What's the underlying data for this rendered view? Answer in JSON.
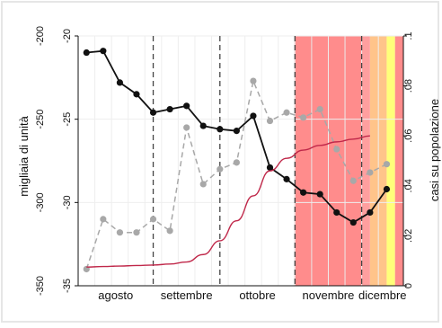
{
  "chart_data": {
    "type": "line",
    "ylabel_left": "migliaia di unità",
    "ylabel_right": "casi su popolazione",
    "y_left": {
      "min": -35,
      "max": -20,
      "ticks": [
        -20,
        -25,
        -30,
        -35
      ],
      "tick_labels_outer": [
        "-200",
        "-250",
        "-300",
        "-350"
      ],
      "tick_labels_inner": [
        "-20",
        "-25",
        "-30",
        "-35"
      ]
    },
    "y_right": {
      "min": 0,
      "max": 0.1,
      "ticks": [
        0,
        0.02,
        0.04,
        0.06,
        0.08,
        0.1
      ],
      "tick_labels": [
        "0",
        ".02",
        ".04",
        ".06",
        ".08",
        ".1"
      ]
    },
    "months": [
      {
        "label": "agosto",
        "start": 0,
        "end": 4.5
      },
      {
        "label": "settembre",
        "start": 4.5,
        "end": 8.5
      },
      {
        "label": "ottobre",
        "start": 8.5,
        "end": 13.0
      },
      {
        "label": "novembre",
        "start": 13.0,
        "end": 17.0
      },
      {
        "label": "dicembre",
        "start": 17.0,
        "end": 19.5
      }
    ],
    "weeks": 19,
    "series": [
      {
        "axis": "left",
        "style": "solid-black",
        "values": [
          -21.0,
          -20.9,
          -22.8,
          -23.5,
          -24.6,
          -24.4,
          -24.2,
          -25.4,
          -25.6,
          -25.7,
          -24.8,
          -27.9,
          -28.6,
          -29.4,
          -29.5,
          -30.6,
          -31.2,
          -30.6,
          -29.2
        ]
      },
      {
        "axis": "left",
        "style": "dashed-gray",
        "values": [
          -34.0,
          -31.0,
          -31.8,
          -31.8,
          -31.0,
          -31.7,
          -25.5,
          -28.9,
          -28.0,
          -27.6,
          -22.7,
          -25.1,
          -24.6,
          -24.9,
          -24.4,
          -26.8,
          -28.7,
          -28.2,
          -27.7
        ]
      },
      {
        "axis": "right",
        "style": "smooth-crimson",
        "values": [
          0.0075,
          0.0077,
          0.0079,
          0.0081,
          0.0083,
          0.0087,
          0.0095,
          0.0125,
          0.018,
          0.026,
          0.036,
          0.046,
          0.051,
          0.0543,
          0.0562,
          0.0576,
          0.0587,
          0.06
        ]
      }
    ],
    "background_bands": [
      {
        "from": 13.0,
        "to": 17.0,
        "color": "#ff8c8c",
        "divisions": 4
      },
      {
        "from": 17.0,
        "to": 17.5,
        "color": "#ff9f9f"
      },
      {
        "from": 17.5,
        "to": 18.5,
        "color": "#ffc48a"
      },
      {
        "from": 18.5,
        "to": 19.0,
        "color": "#ffff7a"
      },
      {
        "from": 19.0,
        "to": 19.5,
        "color": "#ff8c8c"
      }
    ],
    "month_separators": [
      4.5,
      8.5,
      13.0,
      17.0
    ]
  }
}
